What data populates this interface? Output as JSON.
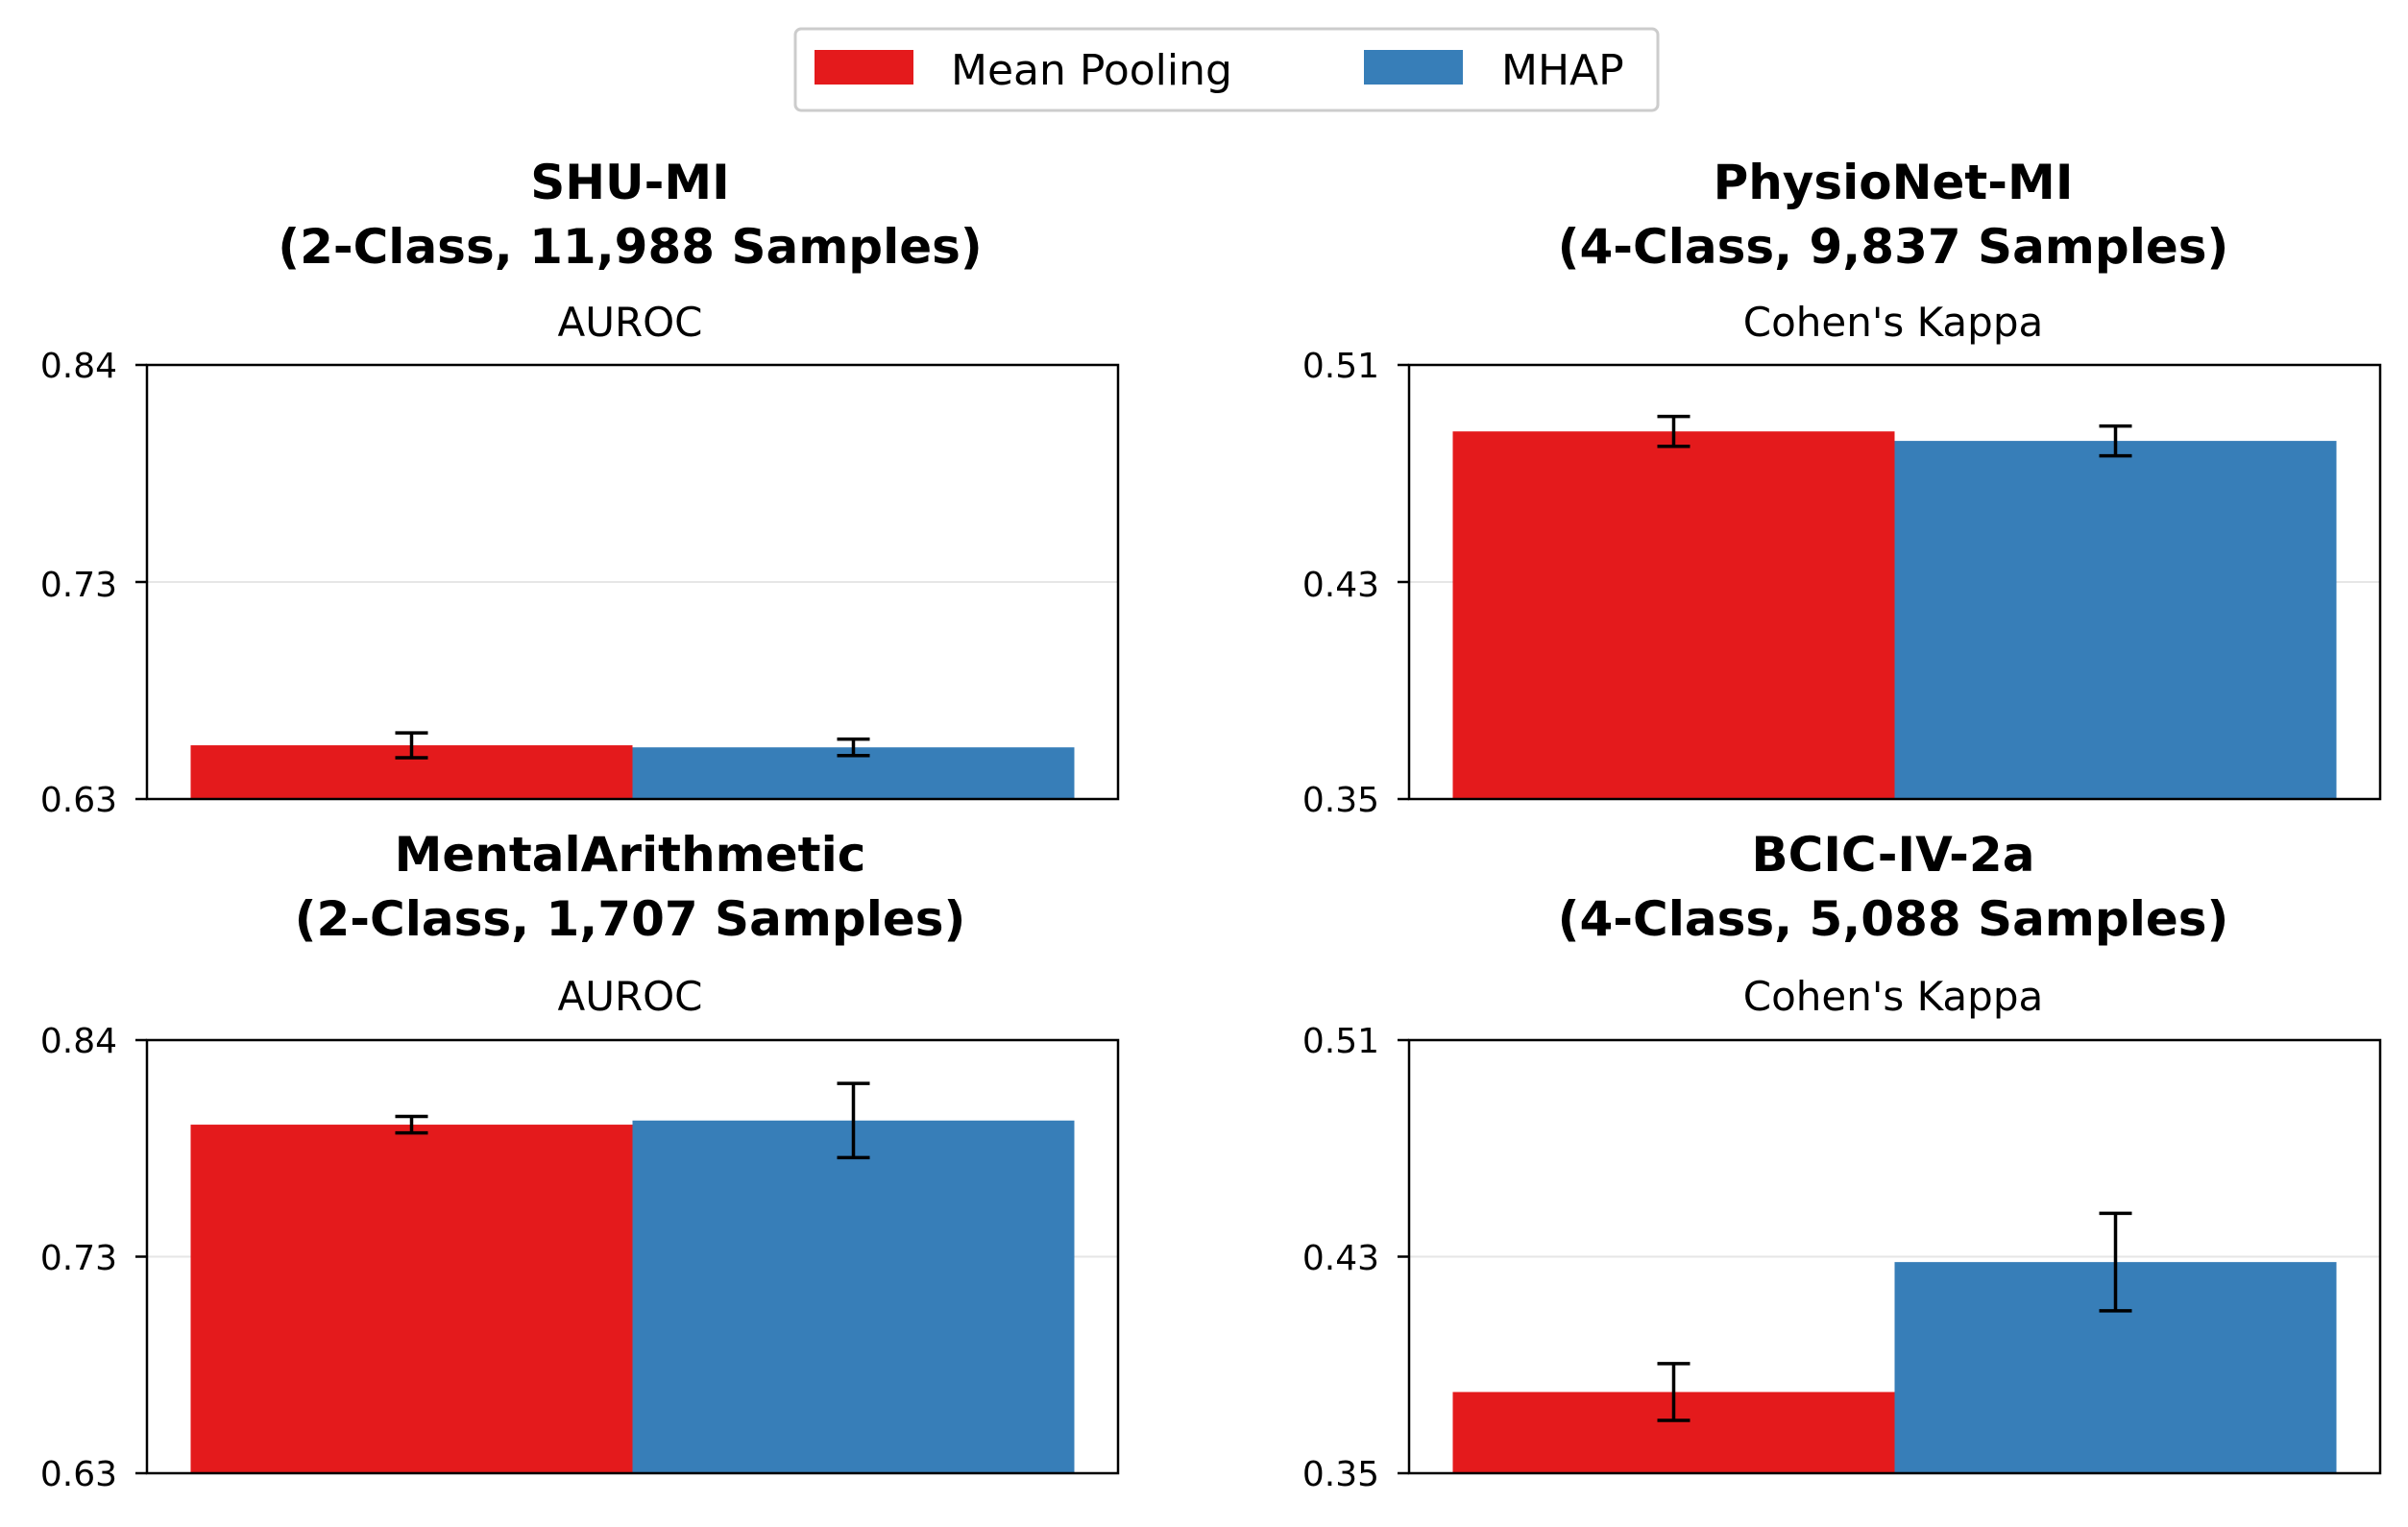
{
  "legend": {
    "items": [
      {
        "label": "Mean Pooling",
        "color": "#e41a1c"
      },
      {
        "label": "MHAP",
        "color": "#377eb8"
      }
    ]
  },
  "chart_data": [
    {
      "type": "bar",
      "title_line1": "SHU-MI",
      "title_line2": "(2-Class, 11,988 Samples)",
      "metric": "AUROC",
      "ylim": [
        0.63,
        0.84
      ],
      "yticks": [
        "0.84",
        "0.73",
        "0.63"
      ],
      "series": [
        {
          "name": "Mean Pooling",
          "value": 0.656,
          "error": 0.006
        },
        {
          "name": "MHAP",
          "value": 0.655,
          "error": 0.004
        }
      ]
    },
    {
      "type": "bar",
      "title_line1": "PhysioNet-MI",
      "title_line2": "(4-Class, 9,837 Samples)",
      "metric": "Cohen's Kappa",
      "ylim": [
        0.35,
        0.51
      ],
      "yticks": [
        "0.51",
        "0.43",
        "0.35"
      ],
      "series": [
        {
          "name": "Mean Pooling",
          "value": 0.4855,
          "error": 0.0055
        },
        {
          "name": "MHAP",
          "value": 0.482,
          "error": 0.0055
        }
      ]
    },
    {
      "type": "bar",
      "title_line1": "MentalArithmetic",
      "title_line2": "(2-Class, 1,707 Samples)",
      "metric": "AUROC",
      "ylim": [
        0.63,
        0.84
      ],
      "yticks": [
        "0.84",
        "0.73",
        "0.63"
      ],
      "series": [
        {
          "name": "Mean Pooling",
          "value": 0.799,
          "error": 0.004
        },
        {
          "name": "MHAP",
          "value": 0.801,
          "error": 0.018
        }
      ]
    },
    {
      "type": "bar",
      "title_line1": "BCIC-IV-2a",
      "title_line2": "(4-Class, 5,088 Samples)",
      "metric": "Cohen's Kappa",
      "ylim": [
        0.35,
        0.51
      ],
      "yticks": [
        "0.51",
        "0.43",
        "0.35"
      ],
      "series": [
        {
          "name": "Mean Pooling",
          "value": 0.38,
          "error": 0.0105
        },
        {
          "name": "MHAP",
          "value": 0.428,
          "error": 0.018
        }
      ]
    }
  ]
}
